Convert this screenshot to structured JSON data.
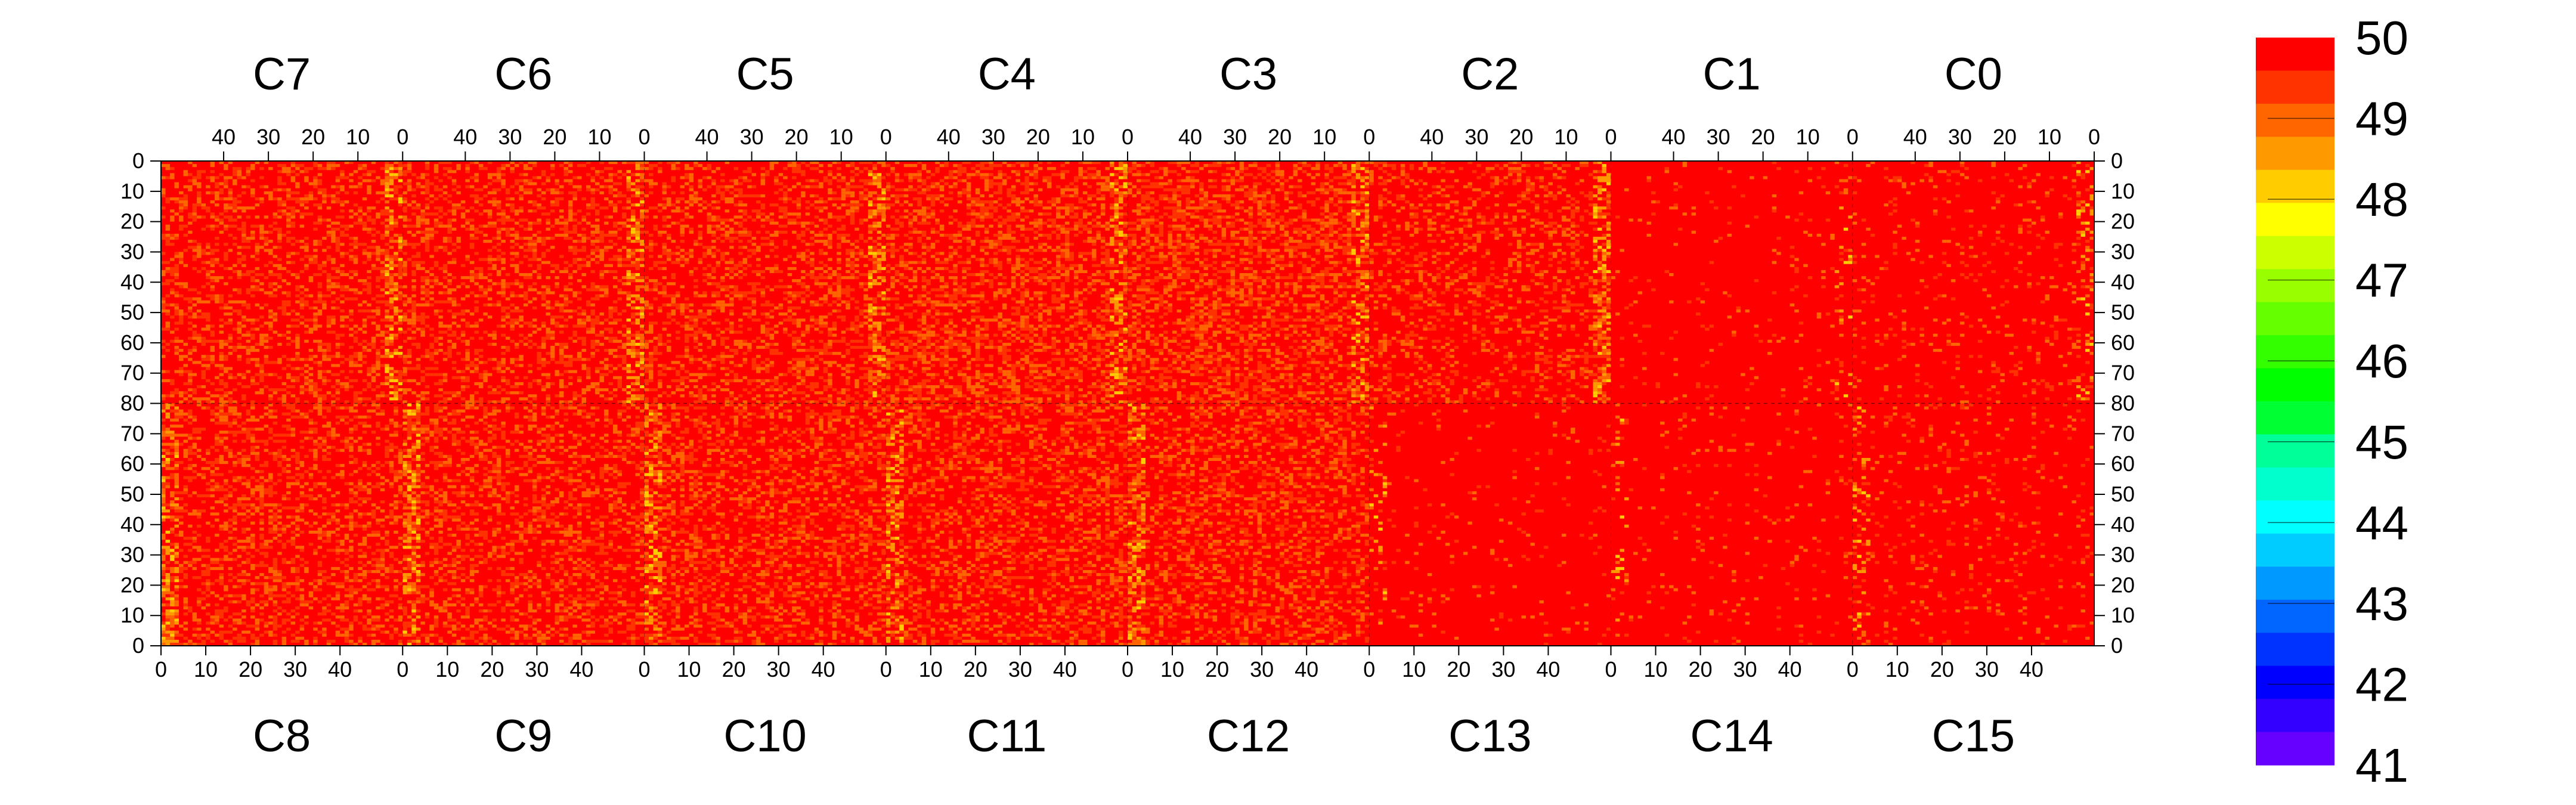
{
  "chart_data": {
    "type": "heatmap",
    "title": "",
    "xlabel": "",
    "ylabel": "",
    "z_range": [
      41,
      50
    ],
    "colorbar": {
      "ticks": [
        "50",
        "49",
        "48",
        "47",
        "46",
        "45",
        "44",
        "43",
        "42",
        "41"
      ],
      "colors": [
        "#ff0000",
        "#ff3300",
        "#ff6600",
        "#ff9900",
        "#ffcc00",
        "#ffff00",
        "#ccff00",
        "#99ff00",
        "#66ff00",
        "#33ff00",
        "#00ff00",
        "#00ff33",
        "#00ff99",
        "#00ffcc",
        "#00ffff",
        "#00ccff",
        "#0099ff",
        "#0066ff",
        "#0033ff",
        "#0000ff",
        "#3300ff",
        "#6600ff"
      ]
    },
    "top_blocks": [
      {
        "label": "C7",
        "x_ticks": [
          "40",
          "30",
          "20",
          "10",
          "0"
        ]
      },
      {
        "label": "C6",
        "x_ticks": [
          "40",
          "30",
          "20",
          "10",
          "0"
        ]
      },
      {
        "label": "C5",
        "x_ticks": [
          "40",
          "30",
          "20",
          "10",
          "0"
        ]
      },
      {
        "label": "C4",
        "x_ticks": [
          "40",
          "30",
          "20",
          "10",
          "0"
        ]
      },
      {
        "label": "C3",
        "x_ticks": [
          "40",
          "30",
          "20",
          "10",
          "0"
        ]
      },
      {
        "label": "C2",
        "x_ticks": [
          "40",
          "30",
          "20",
          "10",
          "0"
        ]
      },
      {
        "label": "C1",
        "x_ticks": [
          "40",
          "30",
          "20",
          "10",
          "0"
        ]
      },
      {
        "label": "C0",
        "x_ticks": [
          "40",
          "30",
          "20",
          "10",
          "0"
        ]
      }
    ],
    "bottom_blocks": [
      {
        "label": "C8",
        "x_ticks": [
          "0",
          "10",
          "20",
          "30",
          "40"
        ]
      },
      {
        "label": "C9",
        "x_ticks": [
          "0",
          "10",
          "20",
          "30",
          "40"
        ]
      },
      {
        "label": "C10",
        "x_ticks": [
          "0",
          "10",
          "20",
          "30",
          "40"
        ]
      },
      {
        "label": "C11",
        "x_ticks": [
          "0",
          "10",
          "20",
          "30",
          "40"
        ]
      },
      {
        "label": "C12",
        "x_ticks": [
          "0",
          "10",
          "20",
          "30",
          "40"
        ]
      },
      {
        "label": "C13",
        "x_ticks": [
          "0",
          "10",
          "20",
          "30",
          "40"
        ]
      },
      {
        "label": "C14",
        "x_ticks": [
          "0",
          "10",
          "20",
          "30",
          "40"
        ]
      },
      {
        "label": "C15",
        "x_ticks": [
          "0",
          "10",
          "20",
          "30",
          "40"
        ]
      }
    ],
    "y_ticks": [
      "0",
      "10",
      "20",
      "30",
      "40",
      "50",
      "60",
      "70",
      "80",
      "70",
      "60",
      "50",
      "40",
      "30",
      "20",
      "10",
      "0"
    ],
    "block_width_channels": 54,
    "half_height_rows": 80,
    "approximate_block_means": {
      "C7": 49.6,
      "C6": 49.6,
      "C5": 49.6,
      "C4": 49.5,
      "C3": 49.5,
      "C2": 49.7,
      "C1": 49.95,
      "C0": 49.9,
      "C8": 49.6,
      "C9": 49.6,
      "C10": 49.6,
      "C11": 49.6,
      "C12": 49.6,
      "C13": 49.95,
      "C14": 49.95,
      "C15": 49.9
    }
  }
}
